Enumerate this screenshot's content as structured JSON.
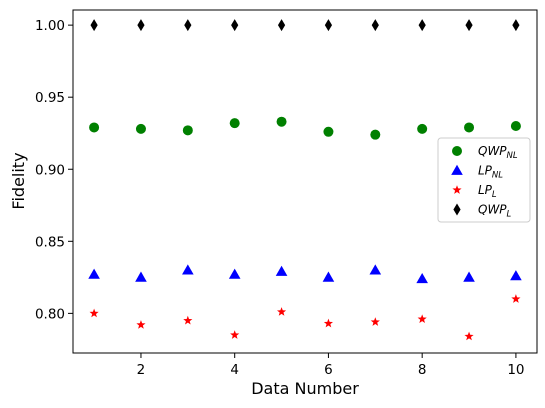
{
  "chart_data": {
    "type": "scatter",
    "title": "",
    "xlabel": "Data Number",
    "ylabel": "Fidelity",
    "xlim": [
      0.55,
      10.45
    ],
    "ylim": [
      0.7725,
      1.0105
    ],
    "xticks": [
      2,
      4,
      6,
      8,
      10
    ],
    "yticks": [
      0.8,
      0.85,
      0.9,
      0.95,
      1.0
    ],
    "grid": false,
    "legend_position": "center-right",
    "x": [
      1,
      2,
      3,
      4,
      5,
      6,
      7,
      8,
      9,
      10
    ],
    "series": [
      {
        "name": "QWP",
        "subscript": "NL",
        "marker": "circle",
        "color": "#008000",
        "values": [
          0.929,
          0.928,
          0.927,
          0.932,
          0.933,
          0.926,
          0.924,
          0.928,
          0.929,
          0.93
        ]
      },
      {
        "name": "LP",
        "subscript": "NL",
        "marker": "triangle",
        "color": "#0000ff",
        "values": [
          0.827,
          0.825,
          0.83,
          0.827,
          0.829,
          0.825,
          0.83,
          0.824,
          0.825,
          0.826
        ]
      },
      {
        "name": "LP",
        "subscript": "L",
        "marker": "star",
        "color": "#ff0000",
        "values": [
          0.8,
          0.792,
          0.795,
          0.785,
          0.801,
          0.793,
          0.794,
          0.796,
          0.784,
          0.81
        ]
      },
      {
        "name": "QWP",
        "subscript": "L",
        "marker": "diamond",
        "color": "#000000",
        "values": [
          1.0,
          1.0,
          1.0,
          1.0,
          1.0,
          1.0,
          1.0,
          1.0,
          1.0,
          1.0
        ]
      }
    ]
  }
}
